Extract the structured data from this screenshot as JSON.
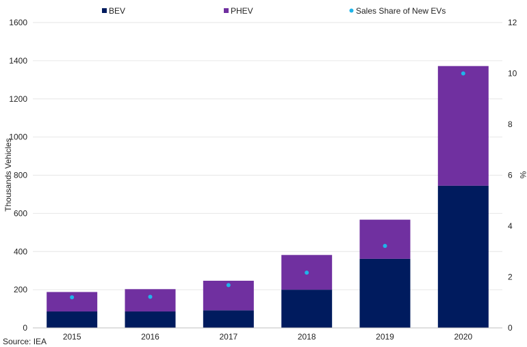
{
  "chart_data": {
    "type": "bar",
    "stacked": true,
    "categories": [
      "2015",
      "2016",
      "2017",
      "2018",
      "2019",
      "2020"
    ],
    "series": [
      {
        "name": "BEV",
        "type": "bar",
        "axis": "left",
        "color": "#001b5e",
        "values": [
          86,
          86,
          92,
          200,
          362,
          745
        ]
      },
      {
        "name": "PHEV",
        "type": "bar",
        "axis": "left",
        "color": "#7030a0",
        "values": [
          102,
          117,
          155,
          182,
          205,
          627
        ]
      },
      {
        "name": "Sales Share of New EVs",
        "type": "scatter",
        "axis": "right",
        "color": "#1fb4e9",
        "values": [
          1.2,
          1.22,
          1.68,
          2.17,
          3.22,
          10.0
        ]
      }
    ],
    "ylabel": "Thousands Vehicles",
    "y2label": "%",
    "ylim": [
      0,
      1600
    ],
    "y2lim": [
      0,
      12
    ],
    "yticks": [
      "0",
      "200",
      "400",
      "600",
      "800",
      "1000",
      "1200",
      "1400",
      "1600"
    ],
    "y2ticks": [
      "0",
      "2",
      "4",
      "6",
      "8",
      "10",
      "12"
    ],
    "grid": true,
    "legend": "top-center"
  },
  "source": "Source: IEA"
}
